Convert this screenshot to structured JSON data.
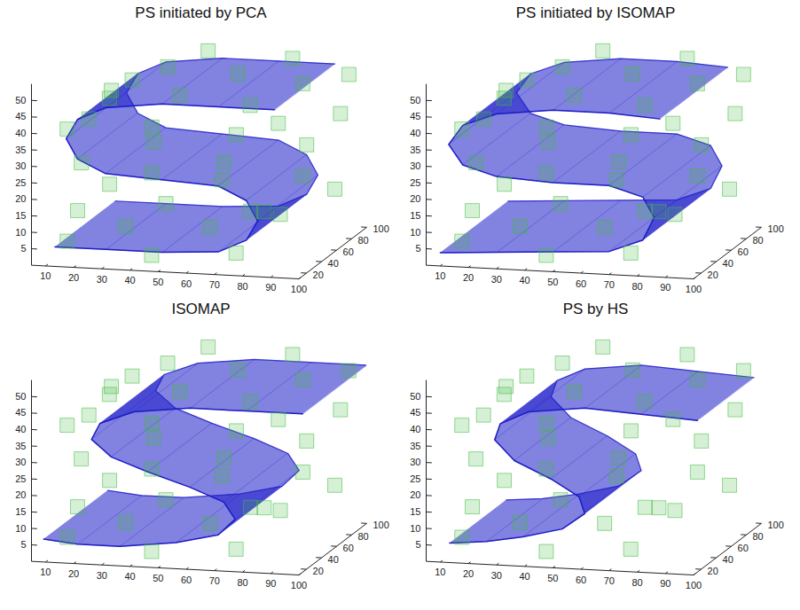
{
  "chart_data": [
    {
      "type": "surface",
      "title": "PS initiated by PCA",
      "xlim": [
        5,
        100
      ],
      "xticks": [
        10,
        20,
        30,
        40,
        50,
        60,
        70,
        80,
        90,
        100
      ],
      "ylim": [
        10,
        100
      ],
      "yticks": [
        20,
        40,
        60,
        80,
        100
      ],
      "zlim": [
        0,
        55
      ],
      "zticks": [
        5,
        10,
        15,
        20,
        25,
        30,
        35,
        40,
        45,
        50
      ],
      "color": "#1c1cc8",
      "surface": {
        "x": [
          90,
          70,
          50,
          30,
          20,
          16,
          20,
          30,
          50,
          70,
          80,
          84,
          80,
          70,
          50,
          30,
          12
        ],
        "z": [
          50,
          50,
          50,
          48,
          44,
          38,
          32,
          28,
          27,
          26,
          22,
          16,
          10,
          6,
          5,
          5,
          5
        ],
        "depth": [
          15,
          95
        ]
      },
      "points": {
        "color": "#44bb44",
        "x": [
          15,
          30,
          55,
          80,
          90,
          20,
          45,
          70,
          85,
          75,
          45,
          15,
          20,
          40,
          65,
          88,
          12,
          35,
          60,
          88,
          80,
          55,
          25,
          8,
          18,
          45,
          75,
          95,
          25,
          55,
          80,
          90,
          60,
          30,
          10,
          92
        ],
        "y": [
          20,
          20,
          20,
          20,
          20,
          20,
          20,
          20,
          20,
          20,
          20,
          20,
          60,
          60,
          60,
          60,
          60,
          60,
          60,
          60,
          60,
          60,
          60,
          60,
          95,
          95,
          95,
          95,
          95,
          95,
          95,
          95,
          95,
          95,
          95,
          95
        ],
        "z": [
          40,
          50,
          52,
          50,
          45,
          30,
          28,
          27,
          18,
          5,
          3,
          6,
          45,
          53,
          52,
          50,
          36,
          30,
          25,
          22,
          10,
          5,
          4,
          8,
          42,
          52,
          51,
          47,
          28,
          27,
          25,
          12,
          4,
          5,
          10,
          35
        ]
      }
    },
    {
      "type": "surface",
      "title": "PS initiated by ISOMAP",
      "xlim": [
        5,
        100
      ],
      "xticks": [
        10,
        20,
        30,
        40,
        50,
        60,
        70,
        80,
        90,
        100
      ],
      "ylim": [
        10,
        100
      ],
      "yticks": [
        20,
        40,
        60,
        80,
        100
      ],
      "zlim": [
        0,
        55
      ],
      "zticks": [
        5,
        10,
        15,
        20,
        25,
        30,
        35,
        40,
        45,
        50
      ],
      "color": "#1c1cc8",
      "surface": {
        "x": [
          88,
          70,
          50,
          30,
          18,
          13,
          18,
          30,
          50,
          70,
          82,
          86,
          82,
          70,
          50,
          30,
          10
        ],
        "z": [
          48,
          49,
          49,
          47,
          43,
          37,
          31,
          28,
          27,
          27,
          24,
          18,
          11,
          7,
          6,
          5,
          4
        ],
        "depth": [
          10,
          100
        ]
      },
      "points": {
        "color": "#44bb44",
        "x": [
          15,
          30,
          55,
          80,
          90,
          20,
          45,
          70,
          85,
          75,
          45,
          15,
          20,
          40,
          65,
          88,
          12,
          35,
          60,
          88,
          80,
          55,
          25,
          8,
          18,
          45,
          75,
          95,
          25,
          55,
          80,
          90,
          60,
          30,
          10,
          92
        ],
        "y": [
          20,
          20,
          20,
          20,
          20,
          20,
          20,
          20,
          20,
          20,
          20,
          20,
          60,
          60,
          60,
          60,
          60,
          60,
          60,
          60,
          60,
          60,
          60,
          60,
          95,
          95,
          95,
          95,
          95,
          95,
          95,
          95,
          95,
          95,
          95,
          95
        ],
        "z": [
          40,
          50,
          52,
          50,
          45,
          30,
          28,
          27,
          18,
          5,
          3,
          6,
          45,
          53,
          52,
          50,
          36,
          30,
          25,
          22,
          10,
          5,
          4,
          8,
          42,
          52,
          51,
          47,
          28,
          27,
          25,
          12,
          4,
          5,
          10,
          35
        ]
      }
    },
    {
      "type": "surface",
      "title": "ISOMAP",
      "xlim": [
        5,
        100
      ],
      "xticks": [
        10,
        20,
        30,
        40,
        50,
        60,
        70,
        80,
        90,
        100
      ],
      "ylim": [
        10,
        100
      ],
      "yticks": [
        20,
        40,
        60,
        80,
        100
      ],
      "zlim": [
        0,
        55
      ],
      "zticks": [
        5,
        10,
        15,
        20,
        25,
        30,
        35,
        40,
        45,
        50
      ],
      "color": "#1c1cc8",
      "surface": {
        "x": [
          100,
          80,
          60,
          40,
          28,
          25,
          32,
          45,
          60,
          72,
          76,
          70,
          55,
          35,
          20,
          8
        ],
        "z": [
          48,
          48,
          48,
          46,
          42,
          37,
          32,
          28,
          24,
          20,
          15,
          10,
          7,
          5,
          5,
          6
        ],
        "depth": [
          15,
          100
        ]
      },
      "points": {
        "color": "#44bb44",
        "x": [
          15,
          30,
          55,
          80,
          90,
          20,
          45,
          70,
          85,
          75,
          45,
          15,
          20,
          40,
          65,
          88,
          12,
          35,
          60,
          88,
          80,
          55,
          25,
          8,
          18,
          45,
          75,
          95,
          25,
          55,
          80,
          90,
          60,
          30,
          10,
          92
        ],
        "y": [
          20,
          20,
          20,
          20,
          20,
          20,
          20,
          20,
          20,
          20,
          20,
          20,
          60,
          60,
          60,
          60,
          60,
          60,
          60,
          60,
          60,
          60,
          60,
          60,
          95,
          95,
          95,
          95,
          95,
          95,
          95,
          95,
          95,
          95,
          95,
          95
        ],
        "z": [
          40,
          50,
          52,
          50,
          45,
          30,
          28,
          27,
          18,
          5,
          3,
          6,
          45,
          53,
          52,
          50,
          36,
          30,
          25,
          22,
          10,
          5,
          4,
          8,
          42,
          52,
          51,
          47,
          28,
          27,
          25,
          12,
          4,
          5,
          10,
          35
        ]
      }
    },
    {
      "type": "surface",
      "title": "PS by HS",
      "xlim": [
        5,
        100
      ],
      "xticks": [
        10,
        20,
        30,
        40,
        50,
        60,
        70,
        80,
        90,
        100
      ],
      "ylim": [
        10,
        100
      ],
      "yticks": [
        20,
        40,
        60,
        80,
        100
      ],
      "zlim": [
        0,
        55
      ],
      "zticks": [
        5,
        10,
        15,
        20,
        25,
        30,
        35,
        40,
        45,
        50
      ],
      "color": "#1c1cc8",
      "surface": {
        "x": [
          100,
          80,
          60,
          40,
          30,
          28,
          35,
          48,
          58,
          60,
          52,
          38,
          25,
          12
        ],
        "z": [
          46,
          47,
          48,
          46,
          42,
          37,
          31,
          26,
          21,
          16,
          11,
          8,
          6,
          5
        ],
        "depth": [
          15,
          90
        ]
      },
      "points": {
        "color": "#44bb44",
        "x": [
          15,
          30,
          55,
          80,
          90,
          20,
          45,
          70,
          85,
          75,
          45,
          15,
          20,
          40,
          65,
          88,
          12,
          35,
          60,
          88,
          80,
          55,
          25,
          8,
          18,
          45,
          75,
          95,
          25,
          55,
          80,
          90,
          60,
          30,
          10,
          92
        ],
        "y": [
          20,
          20,
          20,
          20,
          20,
          20,
          20,
          20,
          20,
          20,
          20,
          20,
          60,
          60,
          60,
          60,
          60,
          60,
          60,
          60,
          60,
          60,
          60,
          60,
          95,
          95,
          95,
          95,
          95,
          95,
          95,
          95,
          95,
          95,
          95,
          95
        ],
        "z": [
          40,
          50,
          52,
          50,
          45,
          30,
          28,
          27,
          18,
          5,
          3,
          6,
          45,
          53,
          52,
          50,
          36,
          30,
          25,
          22,
          10,
          5,
          4,
          8,
          42,
          52,
          51,
          47,
          28,
          27,
          25,
          12,
          4,
          5,
          10,
          35
        ]
      }
    }
  ]
}
